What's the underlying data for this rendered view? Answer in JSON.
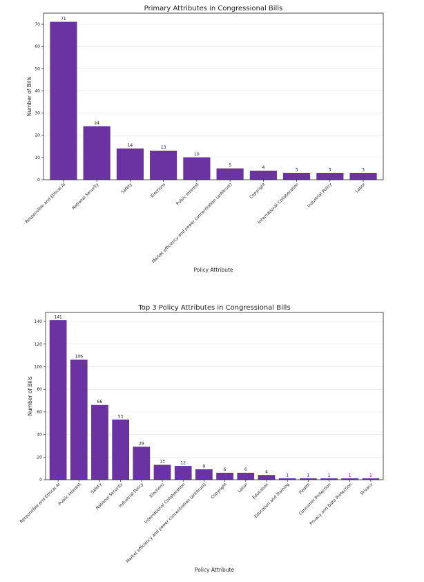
{
  "chart_data": [
    {
      "type": "bar",
      "title": "Primary Attributes in Congressional Bills",
      "xlabel": "Policy Attribute",
      "ylabel": "Number of Bills",
      "ylim": [
        0,
        75
      ],
      "yticks": [
        0,
        10,
        20,
        30,
        40,
        50,
        60,
        70
      ],
      "grid": true,
      "bar_color": "#6a33a1",
      "categories": [
        "Responsible and Ethical AI",
        "National Security",
        "Safety",
        "Elections",
        "Public Interest",
        "Market efficiency and power concentration (antitrust)",
        "Copyright",
        "International Collaboration",
        "Industrial Policy",
        "Labor"
      ],
      "values": [
        71,
        24,
        14,
        13,
        10,
        5,
        4,
        3,
        3,
        3
      ]
    },
    {
      "type": "bar",
      "title": "Top 3 Policy Attributes in Congressional Bills",
      "xlabel": "Policy Attribute",
      "ylabel": "Number of Bills",
      "ylim": [
        0,
        148
      ],
      "yticks": [
        0,
        20,
        40,
        60,
        80,
        100,
        120,
        140
      ],
      "grid": true,
      "bar_color": "#6a33a1",
      "categories": [
        "Responsible and Ethical AI",
        "Public Interest",
        "Safety",
        "National Security",
        "Industrial Policy",
        "Elections",
        "International Collaboration",
        "Market efficiency and power concentration (antitrust)",
        "Copyright",
        "Labor",
        "Education",
        "Education and Training",
        "Health",
        "Consumer Protection",
        "Privacy and Data Protection",
        "Privacy"
      ],
      "values": [
        141,
        106,
        66,
        53,
        29,
        13,
        12,
        9,
        6,
        6,
        4,
        1,
        1,
        1,
        1,
        1
      ]
    }
  ]
}
